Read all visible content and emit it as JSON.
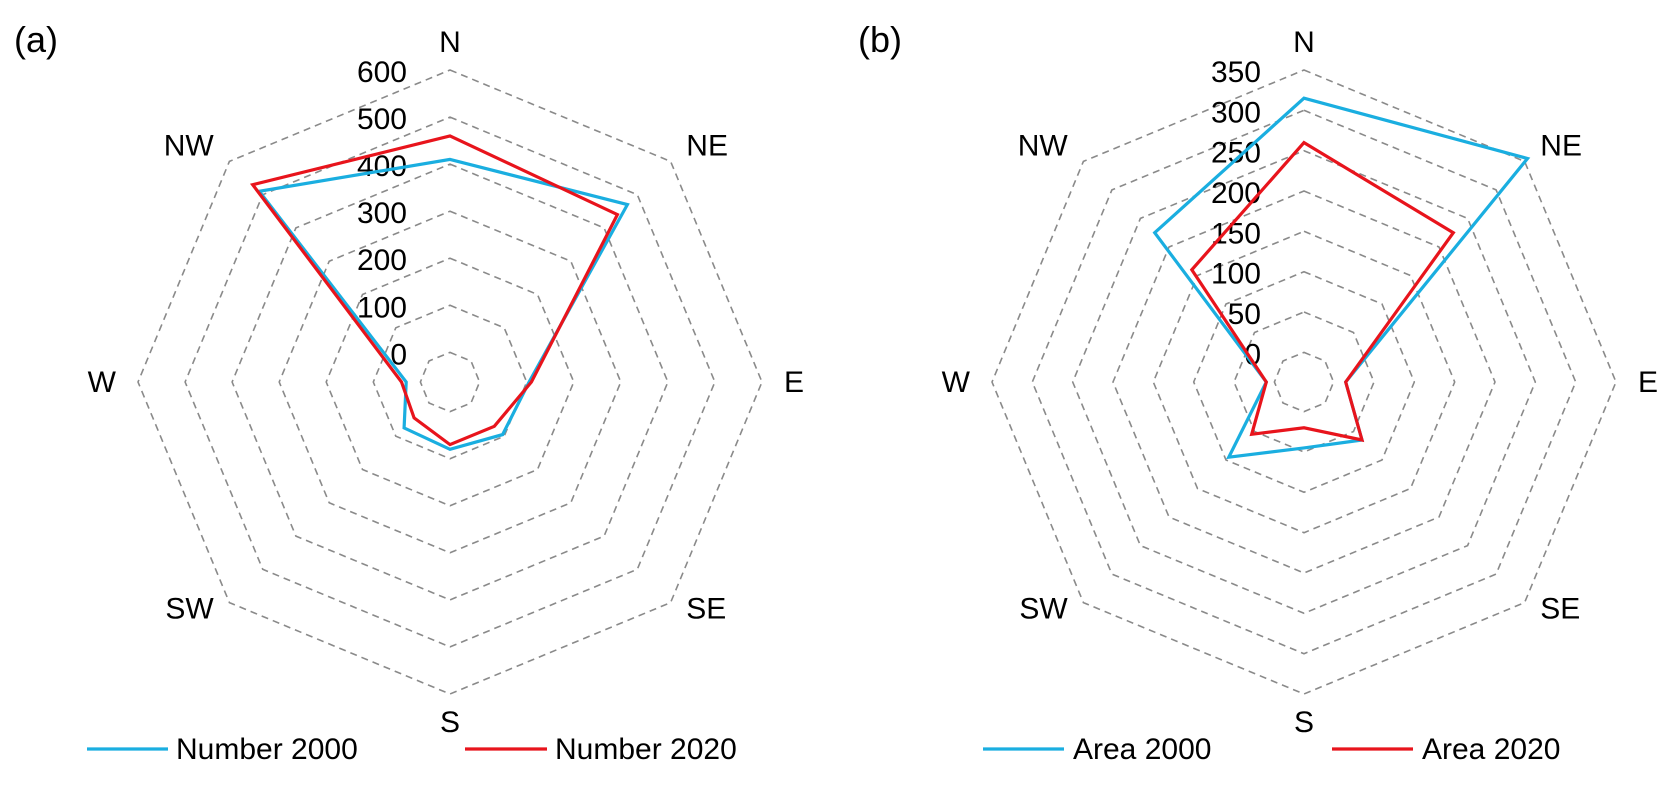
{
  "chart_data": [
    {
      "type": "radar",
      "panel_label": "(a)",
      "title": "",
      "directions": [
        "N",
        "NE",
        "E",
        "SE",
        "S",
        "SW",
        "W",
        "NW"
      ],
      "rlim": [
        0,
        600
      ],
      "ticks": [
        "0",
        "100",
        "200",
        "300",
        "400",
        "500",
        "600"
      ],
      "tick_values": [
        0,
        100,
        200,
        300,
        400,
        500,
        600
      ],
      "grid": true,
      "legend_position": "bottom",
      "series": [
        {
          "name": "Number 2000",
          "color": "#1aaee0",
          "values": [
            410,
            470,
            105,
            95,
            80,
            75,
            30,
            510
          ]
        },
        {
          "name": "Number 2020",
          "color": "#e8141c",
          "values": [
            460,
            440,
            110,
            70,
            70,
            45,
            40,
            530
          ]
        }
      ]
    },
    {
      "type": "radar",
      "panel_label": "(b)",
      "title": "",
      "directions": [
        "N",
        "NE",
        "E",
        "SE",
        "S",
        "SW",
        "W",
        "NW"
      ],
      "rlim": [
        0,
        350
      ],
      "ticks": [
        "0",
        "50",
        "100",
        "150",
        "200",
        "250",
        "300",
        "350"
      ],
      "tick_values": [
        0,
        50,
        100,
        150,
        200,
        250,
        300,
        350
      ],
      "grid": true,
      "legend_position": "bottom",
      "series": [
        {
          "name": "Area 2000",
          "color": "#1aaee0",
          "values": [
            315,
            355,
            15,
            65,
            45,
            95,
            10,
            225
          ]
        },
        {
          "name": "Area 2020",
          "color": "#e8141c",
          "values": [
            260,
            225,
            15,
            65,
            20,
            55,
            10,
            160
          ]
        }
      ]
    }
  ]
}
